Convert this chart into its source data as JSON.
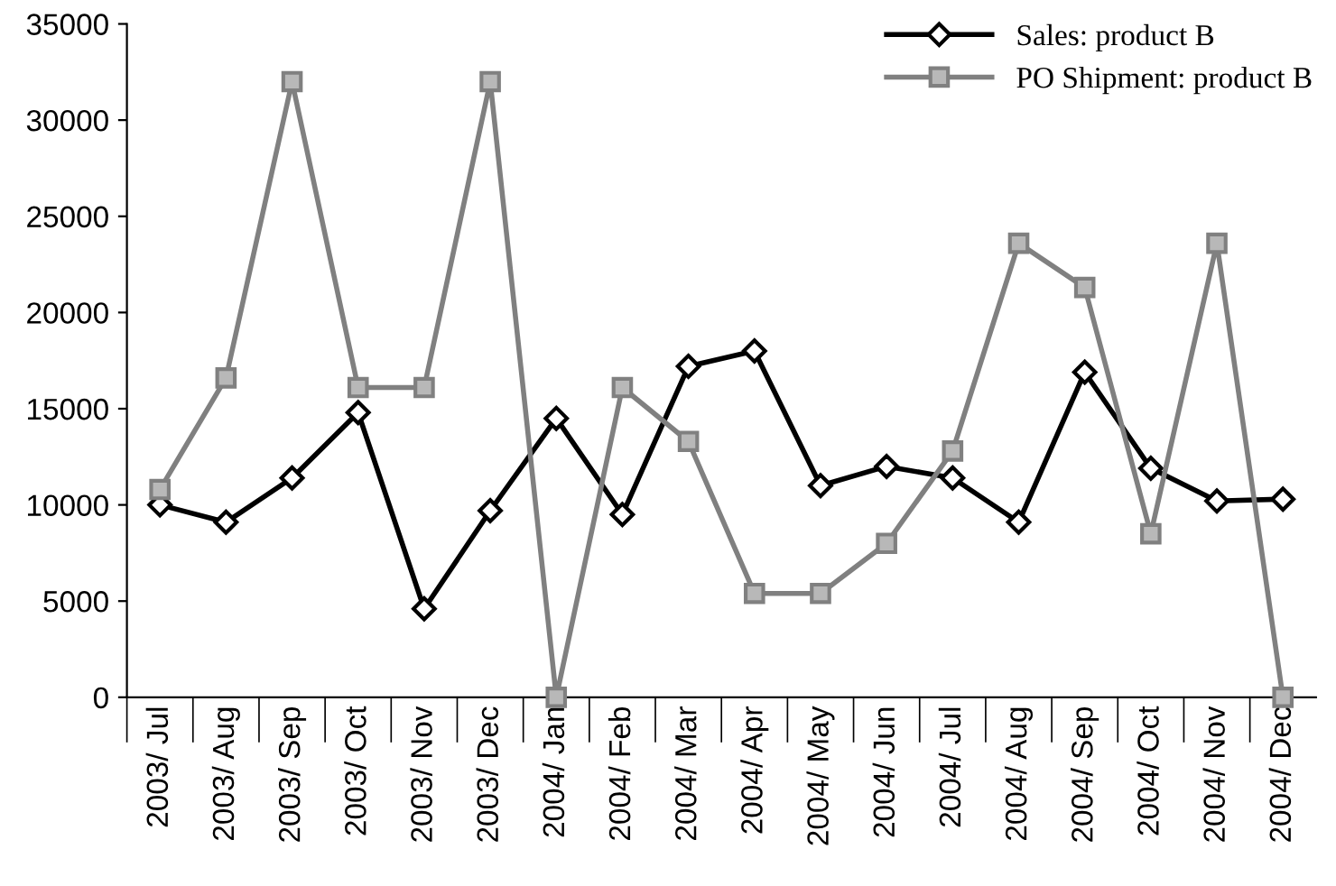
{
  "chart_data": {
    "type": "line",
    "categories": [
      "2003/ Jul",
      "2003/ Aug",
      "2003/ Sep",
      "2003/ Oct",
      "2003/ Nov",
      "2003/ Dec",
      "2004/ Jan",
      "2004/ Feb",
      "2004/ Mar",
      "2004/ Apr",
      "2004/ May",
      "2004/ Jun",
      "2004/ Jul",
      "2004/ Aug",
      "2004/ Sep",
      "2004/ Oct",
      "2004/ Nov",
      "2004/ Dec"
    ],
    "series": [
      {
        "name": "Sales: product B",
        "color": "#000000",
        "marker": "diamond",
        "values": [
          10000,
          9100,
          11400,
          14800,
          4600,
          9700,
          14500,
          9500,
          17200,
          18000,
          11000,
          12000,
          11400,
          9100,
          16900,
          11900,
          10200,
          10300
        ]
      },
      {
        "name": "PO Shipment: product B",
        "color": "#808080",
        "marker": "square",
        "values": [
          10800,
          16600,
          32000,
          16100,
          16100,
          32000,
          0,
          16100,
          13300,
          5400,
          5400,
          8000,
          12800,
          23600,
          21300,
          8500,
          23600,
          0
        ]
      }
    ],
    "ylim": [
      0,
      35000
    ],
    "yticks": [
      0,
      5000,
      10000,
      15000,
      20000,
      25000,
      30000,
      35000
    ],
    "grid": false,
    "legend": "top right",
    "line_style": "solid"
  }
}
